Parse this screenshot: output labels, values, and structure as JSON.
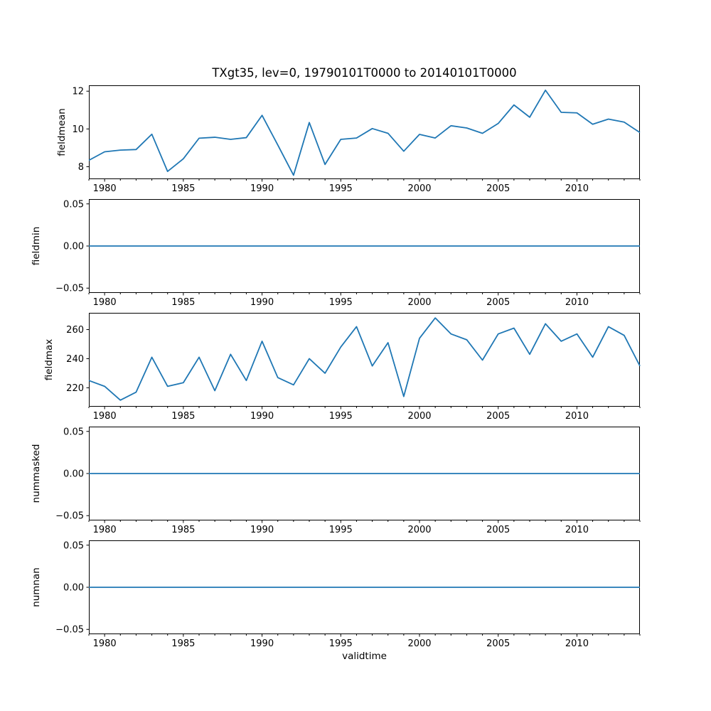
{
  "figure": {
    "background": "#ffffff",
    "text_color": "#000000",
    "axis_color": "#000000"
  },
  "chart_data": {
    "type": "line",
    "title": "TXgt35, lev=0, 19790101T0000 to 20140101T0000",
    "xlabel": "validtime",
    "line_color": "#1f77b4",
    "grid": false,
    "legend": "none",
    "x": [
      1979,
      1980,
      1981,
      1982,
      1983,
      1984,
      1985,
      1986,
      1987,
      1988,
      1989,
      1990,
      1991,
      1992,
      1993,
      1994,
      1995,
      1996,
      1997,
      1998,
      1999,
      2000,
      2001,
      2002,
      2003,
      2004,
      2005,
      2006,
      2007,
      2008,
      2009,
      2010,
      2011,
      2012,
      2013,
      2014
    ],
    "xlim": [
      1979,
      2014
    ],
    "xticks_major": [
      1980,
      1985,
      1990,
      1995,
      2000,
      2005,
      2010
    ],
    "xticks_minor_every": 1,
    "subplots": [
      {
        "ylabel": "fieldmean",
        "ylim": [
          7.34,
          12.31
        ],
        "yticks": [
          {
            "v": 8,
            "label": "8"
          },
          {
            "v": 10,
            "label": "10"
          },
          {
            "v": 12,
            "label": "12"
          }
        ],
        "values": [
          8.34,
          8.79,
          8.88,
          8.91,
          9.72,
          7.75,
          8.42,
          9.51,
          9.56,
          9.45,
          9.54,
          10.72,
          9.15,
          7.55,
          10.34,
          8.12,
          9.45,
          9.52,
          10.02,
          9.77,
          8.82,
          9.71,
          9.52,
          10.17,
          10.05,
          9.77,
          10.29,
          11.27,
          10.62,
          12.05,
          10.88,
          10.85,
          10.25,
          10.52,
          10.36,
          9.81
        ]
      },
      {
        "ylabel": "fieldmin",
        "ylim": [
          -0.0557,
          0.0557
        ],
        "yticks": [
          {
            "v": -0.05,
            "label": "−0.05"
          },
          {
            "v": 0.0,
            "label": "0.00"
          },
          {
            "v": 0.05,
            "label": "0.05"
          }
        ],
        "values": [
          0,
          0,
          0,
          0,
          0,
          0,
          0,
          0,
          0,
          0,
          0,
          0,
          0,
          0,
          0,
          0,
          0,
          0,
          0,
          0,
          0,
          0,
          0,
          0,
          0,
          0,
          0,
          0,
          0,
          0,
          0,
          0,
          0,
          0,
          0,
          0
        ]
      },
      {
        "ylabel": "fieldmax",
        "ylim": [
          207,
          271.5
        ],
        "yticks": [
          {
            "v": 220,
            "label": "220"
          },
          {
            "v": 240,
            "label": "240"
          },
          {
            "v": 260,
            "label": "260"
          }
        ],
        "values": [
          225,
          221,
          211.5,
          217,
          241,
          221,
          223.5,
          241,
          218,
          243,
          225,
          252,
          227,
          222,
          240,
          230,
          248,
          262,
          235,
          251,
          214,
          254,
          268,
          257,
          253,
          239,
          257,
          261,
          243,
          264,
          252,
          257,
          241,
          262,
          256,
          235
        ]
      },
      {
        "ylabel": "nummasked",
        "ylim": [
          -0.0557,
          0.0557
        ],
        "yticks": [
          {
            "v": -0.05,
            "label": "−0.05"
          },
          {
            "v": 0.0,
            "label": "0.00"
          },
          {
            "v": 0.05,
            "label": "0.05"
          }
        ],
        "values": [
          0,
          0,
          0,
          0,
          0,
          0,
          0,
          0,
          0,
          0,
          0,
          0,
          0,
          0,
          0,
          0,
          0,
          0,
          0,
          0,
          0,
          0,
          0,
          0,
          0,
          0,
          0,
          0,
          0,
          0,
          0,
          0,
          0,
          0,
          0,
          0
        ]
      },
      {
        "ylabel": "numnan",
        "ylim": [
          -0.0557,
          0.0557
        ],
        "yticks": [
          {
            "v": -0.05,
            "label": "−0.05"
          },
          {
            "v": 0.0,
            "label": "0.00"
          },
          {
            "v": 0.05,
            "label": "0.05"
          }
        ],
        "values": [
          0,
          0,
          0,
          0,
          0,
          0,
          0,
          0,
          0,
          0,
          0,
          0,
          0,
          0,
          0,
          0,
          0,
          0,
          0,
          0,
          0,
          0,
          0,
          0,
          0,
          0,
          0,
          0,
          0,
          0,
          0,
          0,
          0,
          0,
          0,
          0
        ]
      }
    ]
  }
}
